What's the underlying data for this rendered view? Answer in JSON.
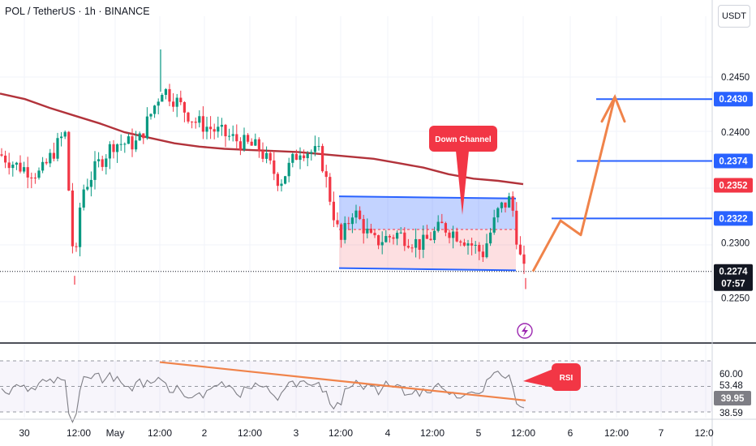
{
  "header": {
    "symbol_line": "POL / TetherUS · 1h · BINANCE",
    "currency": "USDT"
  },
  "colors": {
    "bull": "#089981",
    "bear": "#f23645",
    "ma": "#b2333b",
    "channel_line": "#2962ff",
    "arrow": "#f0834a",
    "rsi": "#7e7e85",
    "rsi_trend": "#f0834a",
    "tag_red": "#f23645",
    "tag_blue": "#2962ff"
  },
  "chart_data": [
    {
      "type": "candlestick",
      "title": "POL / TetherUS · 1h · BINANCE",
      "ylim": [
        0.2222,
        0.2535
      ],
      "y_ticks": [
        0.225,
        0.23,
        0.235,
        0.24,
        0.245
      ],
      "y_tick_labels": [
        "0.2250",
        "0.2300",
        "",
        "0.2400",
        "0.2450"
      ],
      "x_tick_labels": [
        "30",
        "12:00",
        "May",
        "12:00",
        "2",
        "12:00",
        "3",
        "12:00",
        "4",
        "12:00",
        "5",
        "12:00",
        "6",
        "12:00",
        "7",
        "12:0"
      ],
      "price_tags": [
        {
          "label": "0.2430",
          "value": 0.243,
          "style": "blue"
        },
        {
          "label": "0.2374",
          "value": 0.2374,
          "style": "blue"
        },
        {
          "label": "0.2352",
          "value": 0.2352,
          "style": "red"
        },
        {
          "label": "0.2322",
          "value": 0.2322,
          "style": "blue"
        },
        {
          "label": "0.2274",
          "value": 0.2274,
          "style": "dark"
        },
        {
          "label": "07:57",
          "value": 0.2265,
          "style": "dark-sub"
        }
      ],
      "target_levels": [
        0.2322,
        0.2374,
        0.243
      ],
      "current_price": 0.2274,
      "channel": {
        "label": "Down Channel",
        "upper": [
          [
            0.2342,
            0.234
          ]
        ],
        "lower": [
          [
            0.2277,
            0.2275
          ]
        ],
        "mid": 0.2312
      },
      "moving_average": [
        0.2435,
        0.243,
        0.2422,
        0.2415,
        0.2408,
        0.24,
        0.2395,
        0.239,
        0.2387,
        0.2385,
        0.2384,
        0.2383,
        0.2382,
        0.238,
        0.2378,
        0.2376,
        0.2372,
        0.2368,
        0.2362,
        0.2358,
        0.2356,
        0.2353
      ],
      "projection_path": [
        0.2274,
        0.232,
        0.2307,
        0.2432,
        0.2412
      ],
      "candles_ohlc_summary": "approximate hourly OHLC, Apr 30 to May 5 12:00"
    },
    {
      "type": "line",
      "title": "RSI",
      "ylim": [
        25,
        75
      ],
      "y_tick_labels": [
        "60.00",
        "53.48",
        "39.95",
        "38.59"
      ],
      "current_value": 39.95,
      "ma_value": 53.48,
      "trendline": [
        69,
        39
      ]
    }
  ],
  "rsi_label": "RSI",
  "price_axis": [
    "0.2450",
    "0.2400",
    "0.2300",
    "0.2250"
  ]
}
